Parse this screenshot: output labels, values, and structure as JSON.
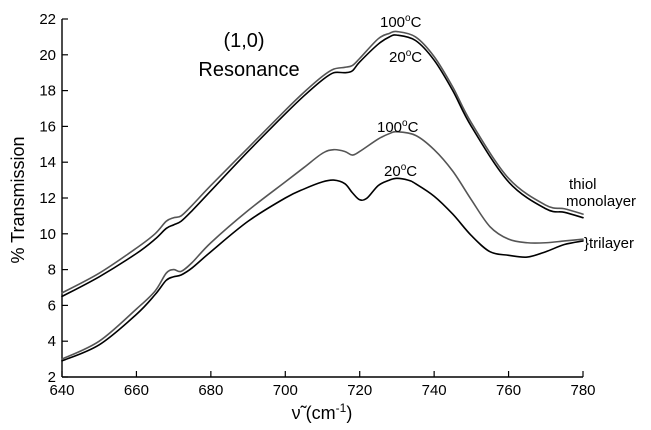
{
  "chart_data": {
    "type": "line",
    "xlabel_prefix": "ν̃ (cm",
    "xlabel_sup": "-1",
    "xlabel_suffix": ")",
    "ylabel": "% Transmission",
    "xlim": [
      640,
      780
    ],
    "ylim": [
      2,
      22
    ],
    "x_ticks": [
      640,
      660,
      680,
      700,
      720,
      740,
      760,
      780
    ],
    "y_ticks": [
      2,
      4,
      6,
      8,
      10,
      12,
      14,
      16,
      18,
      20,
      22
    ],
    "grid": false,
    "colors": {
      "dark": "#000000",
      "light": "#555555"
    },
    "title_lines": [
      "(1,0)",
      "Resonance"
    ],
    "series": [
      {
        "group": "thiol monolayer",
        "temp_label": "100°C",
        "color": "#555555",
        "x": [
          640,
          650,
          660,
          665,
          668,
          670,
          672,
          675,
          680,
          690,
          700,
          705,
          710,
          713,
          716,
          718,
          720,
          725,
          728,
          730,
          735,
          740,
          745,
          750,
          760,
          770,
          775,
          780
        ],
        "y": [
          6.7,
          7.8,
          9.2,
          10.0,
          10.7,
          10.9,
          11.0,
          11.6,
          12.7,
          14.8,
          16.9,
          17.9,
          18.8,
          19.2,
          19.3,
          19.4,
          19.8,
          20.9,
          21.2,
          21.3,
          21.0,
          19.9,
          18.2,
          16.2,
          13.1,
          11.6,
          11.4,
          11.1
        ]
      },
      {
        "group": "thiol monolayer",
        "temp_label": "20°C",
        "color": "#000000",
        "x": [
          640,
          650,
          660,
          665,
          668,
          670,
          672,
          675,
          680,
          690,
          700,
          705,
          710,
          713,
          716,
          718,
          720,
          725,
          728,
          730,
          735,
          740,
          745,
          750,
          760,
          770,
          775,
          780
        ],
        "y": [
          6.5,
          7.6,
          8.9,
          9.7,
          10.3,
          10.5,
          10.7,
          11.3,
          12.4,
          14.6,
          16.7,
          17.7,
          18.6,
          19.0,
          19.0,
          19.1,
          19.6,
          20.6,
          21.0,
          21.1,
          20.8,
          19.7,
          18.0,
          16.0,
          12.9,
          11.4,
          11.2,
          10.9
        ]
      },
      {
        "group": "trilayer",
        "temp_label": "100°C",
        "color": "#555555",
        "x": [
          640,
          650,
          660,
          665,
          668,
          670,
          672,
          675,
          680,
          690,
          700,
          705,
          710,
          713,
          716,
          718,
          720,
          725,
          728,
          730,
          735,
          740,
          745,
          750,
          755,
          760,
          765,
          770,
          775,
          780
        ],
        "y": [
          3.0,
          4.0,
          5.8,
          6.8,
          7.8,
          8.0,
          7.9,
          8.4,
          9.5,
          11.3,
          12.9,
          13.7,
          14.5,
          14.7,
          14.6,
          14.4,
          14.6,
          15.3,
          15.6,
          15.7,
          15.5,
          14.7,
          13.5,
          11.9,
          10.4,
          9.7,
          9.5,
          9.5,
          9.6,
          9.7
        ]
      },
      {
        "group": "trilayer",
        "temp_label": "20°C",
        "color": "#000000",
        "x": [
          640,
          650,
          660,
          665,
          668,
          670,
          672,
          675,
          680,
          690,
          700,
          705,
          710,
          713,
          716,
          718,
          720,
          722,
          725,
          728,
          730,
          733,
          735,
          740,
          745,
          750,
          755,
          760,
          765,
          770,
          775,
          780
        ],
        "y": [
          2.9,
          3.8,
          5.5,
          6.6,
          7.4,
          7.6,
          7.7,
          8.1,
          9.0,
          10.7,
          12.0,
          12.5,
          12.9,
          13.0,
          12.8,
          12.3,
          11.9,
          12.0,
          12.7,
          13.0,
          13.1,
          13.0,
          12.8,
          12.1,
          11.1,
          9.9,
          9.0,
          8.8,
          8.7,
          9.0,
          9.4,
          9.6
        ]
      }
    ],
    "annotations": {
      "mono_100": "100",
      "mono_20": "20",
      "tri_100": "100",
      "tri_20": "20",
      "degree": "o",
      "unit": "C",
      "thiol": "thiol",
      "monolayer": "monolayer",
      "trilayer": "}trilayer"
    }
  }
}
